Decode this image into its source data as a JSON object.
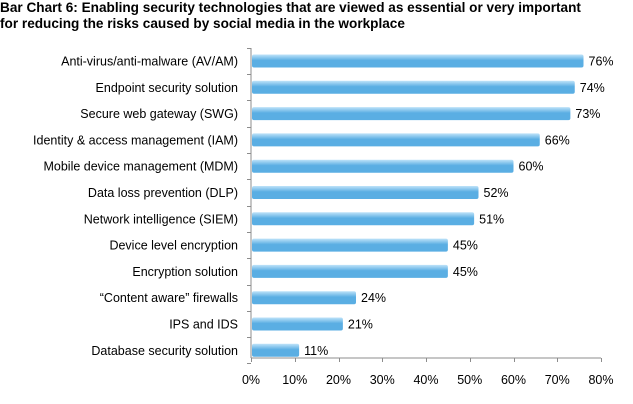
{
  "chart_data": {
    "type": "bar",
    "orientation": "horizontal",
    "title": "Bar Chart 6: Enabling security technologies that are viewed as essential or very important\nfor reducing the risks caused by social media in the workplace",
    "categories": [
      "Anti-virus/anti-malware (AV/AM)",
      "Endpoint security solution",
      "Secure web gateway (SWG)",
      "Identity & access management (IAM)",
      "Mobile device management (MDM)",
      "Data loss prevention (DLP)",
      "Network intelligence (SIEM)",
      "Device level encryption",
      "Encryption solution",
      "“Content aware” firewalls",
      "IPS and IDS",
      "Database security solution"
    ],
    "values": [
      76,
      74,
      73,
      66,
      60,
      52,
      51,
      45,
      45,
      24,
      21,
      11
    ],
    "value_labels": [
      "76%",
      "74%",
      "73%",
      "66%",
      "60%",
      "52%",
      "51%",
      "45%",
      "45%",
      "24%",
      "21%",
      "11%"
    ],
    "xlim": [
      0,
      80
    ],
    "x_ticks": [
      0,
      10,
      20,
      30,
      40,
      50,
      60,
      70,
      80
    ],
    "x_tick_labels": [
      "0%",
      "10%",
      "20%",
      "30%",
      "40%",
      "50%",
      "60%",
      "70%",
      "80%"
    ],
    "grid": false,
    "legend": "none",
    "bar_color": "#5aaee3",
    "bar_color_light": "#bfe3f9",
    "axis_color": "#8c8c8c"
  }
}
